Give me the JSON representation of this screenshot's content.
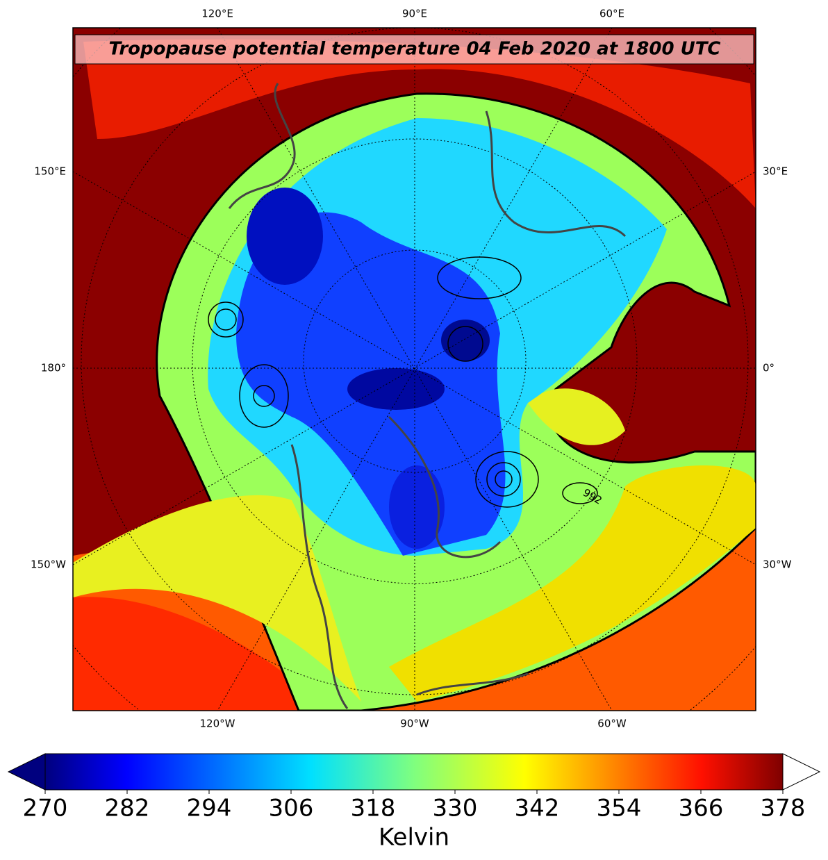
{
  "title": "Tropopause potential temperature 04 Feb 2020 at 1800 UTC",
  "graticule_labels": {
    "top": [
      "120°E",
      "90°E",
      "60°E"
    ],
    "left": [
      "150°E",
      "180°",
      "150°W"
    ],
    "right": [
      "30°E",
      "0°",
      "30°W"
    ],
    "bottom": [
      "120°W",
      "90°W",
      "60°W"
    ]
  },
  "contour_labels": [
    "992"
  ],
  "colorbar": {
    "label": "Kelvin",
    "lim": [
      270,
      378
    ],
    "ticks": [
      270,
      282,
      294,
      306,
      318,
      330,
      342,
      354,
      366,
      378
    ]
  }
}
